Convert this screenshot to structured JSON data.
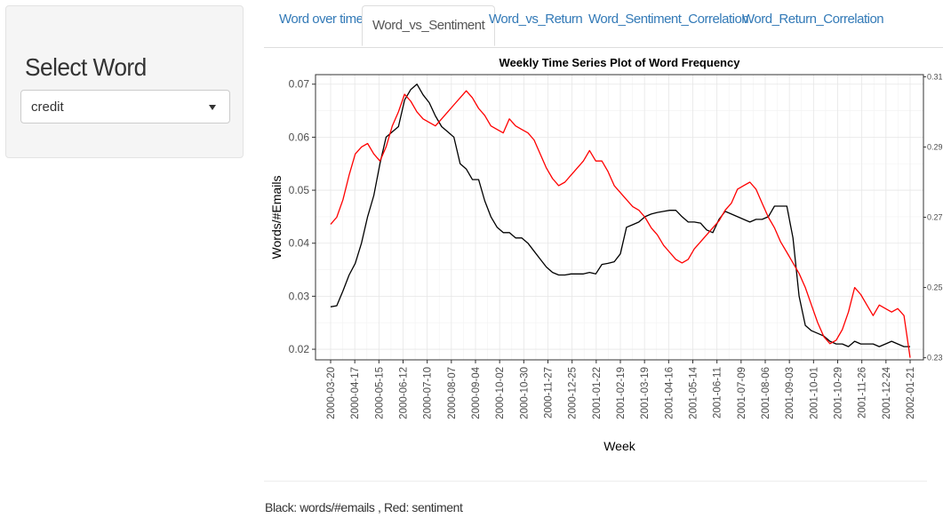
{
  "sidebar": {
    "heading": "Select Word",
    "select_value": "credit"
  },
  "tabs": [
    {
      "label": "Word over time",
      "active": false
    },
    {
      "label": "Word_vs_Sentiment",
      "active": true
    },
    {
      "label": "Word_vs_Return",
      "active": false
    },
    {
      "label": "Word_Sentiment_Correlation",
      "active": false
    },
    {
      "label": "Word_Return_Correlation",
      "active": false
    }
  ],
  "footer_text": "Black: words/#emails , Red: sentiment",
  "chart_data": {
    "type": "line",
    "title": "Weekly Time Series Plot of Word Frequency",
    "xlabel": "Week",
    "ylabel": "Words/#Emails",
    "x_tick_labels": [
      "2000-03-20",
      "2000-04-17",
      "2000-05-15",
      "2000-06-12",
      "2000-07-10",
      "2000-08-07",
      "2000-09-04",
      "2000-10-02",
      "2000-10-30",
      "2000-11-27",
      "2000-12-25",
      "2001-01-22",
      "2001-02-19",
      "2001-03-19",
      "2001-04-16",
      "2001-05-14",
      "2001-06-11",
      "2001-07-09",
      "2001-08-06",
      "2001-09-03",
      "2001-10-01",
      "2001-10-29",
      "2001-11-26",
      "2001-12-24",
      "2002-01-21"
    ],
    "y_left_ticks": [
      "0.02",
      "0.03",
      "0.04",
      "0.05",
      "0.06",
      "0.07"
    ],
    "y_right_ticks": [
      "0.23",
      "0.25",
      "0.27",
      "0.29",
      "0.31"
    ],
    "ylim_left": [
      0.018,
      0.0718
    ],
    "ylim_right": [
      0.2294,
      0.3106
    ],
    "grid": true,
    "series": [
      {
        "color": "#000000",
        "axis": "left",
        "values": [
          0.028,
          0.0282,
          0.031,
          0.034,
          0.0362,
          0.04,
          0.045,
          0.049,
          0.055,
          0.06,
          0.061,
          0.062,
          0.067,
          0.069,
          0.07,
          0.068,
          0.0665,
          0.064,
          0.062,
          0.061,
          0.06,
          0.055,
          0.054,
          0.052,
          0.052,
          0.048,
          0.045,
          0.043,
          0.042,
          0.042,
          0.041,
          0.041,
          0.04,
          0.0385,
          0.037,
          0.0355,
          0.0345,
          0.034,
          0.034,
          0.0342,
          0.0342,
          0.0342,
          0.0345,
          0.0342,
          0.036,
          0.0362,
          0.0365,
          0.038,
          0.043,
          0.0435,
          0.044,
          0.045,
          0.0455,
          0.0458,
          0.046,
          0.0462,
          0.0462,
          0.045,
          0.044,
          0.044,
          0.0438,
          0.0425,
          0.042,
          0.0445,
          0.046,
          0.0455,
          0.045,
          0.0445,
          0.044,
          0.0445,
          0.0445,
          0.045,
          0.047,
          0.047,
          0.047,
          0.041,
          0.03,
          0.0245,
          0.0235,
          0.023,
          0.0225,
          0.0215,
          0.021,
          0.021,
          0.0205,
          0.0215,
          0.021,
          0.021,
          0.021,
          0.0205,
          0.021,
          0.0215,
          0.021,
          0.0205,
          0.0205
        ]
      },
      {
        "color": "#ff0000",
        "axis": "right",
        "values": [
          0.268,
          0.27,
          0.275,
          0.282,
          0.288,
          0.29,
          0.291,
          0.288,
          0.286,
          0.29,
          0.296,
          0.3,
          0.305,
          0.303,
          0.3,
          0.298,
          0.297,
          0.296,
          0.298,
          0.3,
          0.302,
          0.304,
          0.306,
          0.304,
          0.301,
          0.299,
          0.296,
          0.295,
          0.294,
          0.298,
          0.296,
          0.295,
          0.294,
          0.292,
          0.288,
          0.284,
          0.281,
          0.279,
          0.28,
          0.282,
          0.284,
          0.286,
          0.289,
          0.286,
          0.286,
          0.283,
          0.279,
          0.277,
          0.275,
          0.273,
          0.272,
          0.27,
          0.267,
          0.265,
          0.262,
          0.26,
          0.258,
          0.257,
          0.258,
          0.261,
          0.263,
          0.265,
          0.267,
          0.269,
          0.272,
          0.274,
          0.278,
          0.279,
          0.28,
          0.278,
          0.274,
          0.27,
          0.267,
          0.263,
          0.26,
          0.257,
          0.254,
          0.25,
          0.245,
          0.24,
          0.236,
          0.234,
          0.235,
          0.238,
          0.243,
          0.25,
          0.248,
          0.245,
          0.242,
          0.245,
          0.244,
          0.243,
          0.244,
          0.242,
          0.23
        ]
      }
    ]
  }
}
